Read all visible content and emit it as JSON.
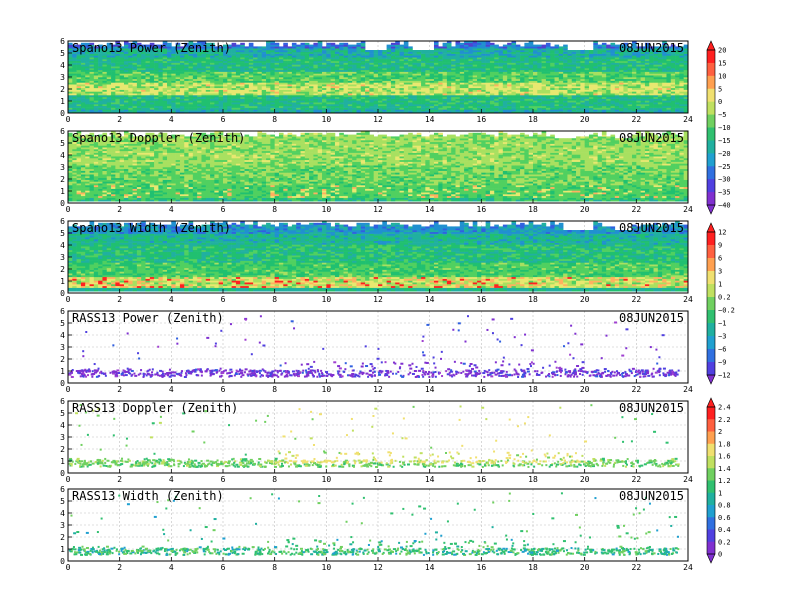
{
  "colors": {
    "background": "#ffffff",
    "frame": "#000000",
    "grid": "#bfbfbf",
    "palette_power": [
      "#ff2020",
      "#ff6a40",
      "#ffb060",
      "#e8e870",
      "#a8e060",
      "#50d060",
      "#20c070",
      "#20b0a0",
      "#2090d0",
      "#3060e0",
      "#5040d0",
      "#8030d0"
    ],
    "palette_cb": [
      "#ff2020",
      "#ff6040",
      "#ffa050",
      "#f0e070",
      "#c0e060",
      "#70d060",
      "#30c070",
      "#20b0a0",
      "#20a0d0",
      "#3070e0",
      "#5040e0",
      "#8030d0"
    ]
  },
  "colorbars": [
    {
      "labels": [
        "20",
        "15",
        "10",
        "5",
        "0",
        "−5",
        "−10",
        "−15",
        "−20",
        "−25",
        "−30",
        "−35",
        "−40"
      ]
    },
    {
      "labels": [
        "12",
        "9",
        "6",
        "3",
        "1",
        "0.2",
        "−0.2",
        "−1",
        "−3",
        "−6",
        "−9",
        "−12"
      ]
    },
    {
      "labels": [
        "2.4",
        "2.2",
        "2",
        "1.8",
        "1.6",
        "1.4",
        "1.2",
        "1",
        "0.8",
        "0.6",
        "0.4",
        "0.2",
        "0"
      ]
    }
  ],
  "chart_data": [
    {
      "type": "heatmap",
      "title": "Spano13 Power (Zenith)",
      "date": "08JUN2015",
      "xlim": [
        0,
        24
      ],
      "ylim": [
        0,
        6
      ],
      "xticks": [
        "0",
        "2",
        "4",
        "6",
        "8",
        "10",
        "12",
        "14",
        "16",
        "18",
        "20",
        "22",
        "24"
      ],
      "yticks": [
        "0",
        "1",
        "2",
        "3",
        "4",
        "5",
        "6"
      ],
      "grid": true,
      "colorbar": 0,
      "kind": "power"
    },
    {
      "type": "heatmap",
      "title": "Spano13 Doppler (Zenith)",
      "date": "08JUN2015",
      "xlim": [
        0,
        24
      ],
      "ylim": [
        0,
        6
      ],
      "xticks": [
        "0",
        "2",
        "4",
        "6",
        "8",
        "10",
        "12",
        "14",
        "16",
        "18",
        "20",
        "22",
        "24"
      ],
      "yticks": [
        "0",
        "1",
        "2",
        "3",
        "4",
        "5",
        "6"
      ],
      "grid": true,
      "colorbar": 0,
      "kind": "doppler"
    },
    {
      "type": "heatmap",
      "title": "Spano13 Width (Zenith)",
      "date": "08JUN2015",
      "xlim": [
        0,
        24
      ],
      "ylim": [
        0,
        6
      ],
      "xticks": [
        "0",
        "2",
        "4",
        "6",
        "8",
        "10",
        "12",
        "14",
        "16",
        "18",
        "20",
        "22",
        "24"
      ],
      "yticks": [
        "0",
        "1",
        "2",
        "3",
        "4",
        "5",
        "6"
      ],
      "grid": true,
      "colorbar": 1,
      "kind": "width"
    },
    {
      "type": "scatter",
      "title": "RASS13 Power (Zenith)",
      "date": "08JUN2015",
      "xlim": [
        0,
        24
      ],
      "ylim": [
        0,
        6
      ],
      "xticks": [
        "0",
        "2",
        "4",
        "6",
        "8",
        "10",
        "12",
        "14",
        "16",
        "18",
        "20",
        "22",
        "24"
      ],
      "yticks": [
        "0",
        "1",
        "2",
        "3",
        "4",
        "5",
        "6"
      ],
      "grid": true,
      "colorbar": 1,
      "kind": "rass_power"
    },
    {
      "type": "scatter",
      "title": "RASS13 Doppler (Zenith)",
      "date": "08JUN2015",
      "xlim": [
        0,
        24
      ],
      "ylim": [
        0,
        6
      ],
      "xticks": [
        "0",
        "2",
        "4",
        "6",
        "8",
        "10",
        "12",
        "14",
        "16",
        "18",
        "20",
        "22",
        "24"
      ],
      "yticks": [
        "0",
        "1",
        "2",
        "3",
        "4",
        "5",
        "6"
      ],
      "grid": true,
      "colorbar": 2,
      "kind": "rass_doppler"
    },
    {
      "type": "scatter",
      "title": "RASS13 Width (Zenith)",
      "date": "08JUN2015",
      "xlim": [
        0,
        24
      ],
      "ylim": [
        0,
        6
      ],
      "xticks": [
        "0",
        "2",
        "4",
        "6",
        "8",
        "10",
        "12",
        "14",
        "16",
        "18",
        "20",
        "22",
        "24"
      ],
      "yticks": [
        "0",
        "1",
        "2",
        "3",
        "4",
        "5",
        "6"
      ],
      "grid": true,
      "colorbar": 2,
      "kind": "rass_width"
    }
  ]
}
